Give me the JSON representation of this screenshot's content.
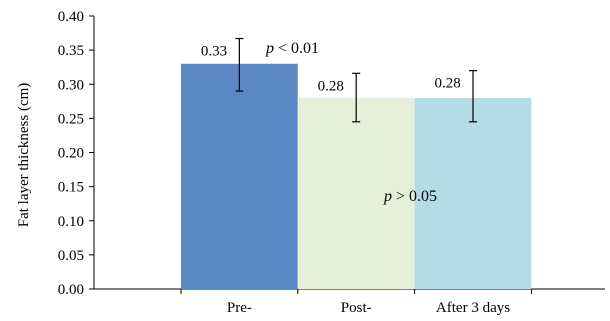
{
  "chart_data": {
    "type": "bar",
    "title": "",
    "xlabel": "",
    "ylabel": "Fat layer thickness (cm)",
    "ylim": [
      0,
      0.4
    ],
    "yticks": [
      "0.00",
      "0.05",
      "0.10",
      "0.15",
      "0.20",
      "0.25",
      "0.30",
      "0.35",
      "0.40"
    ],
    "categories": [
      "Pre-",
      "Post-",
      "After 3 days"
    ],
    "values": [
      0.33,
      0.28,
      0.28
    ],
    "data_labels": [
      "0.33",
      "0.28",
      "0.28"
    ],
    "error_low": [
      0.29,
      0.245,
      0.245
    ],
    "error_high": [
      0.367,
      0.316,
      0.32
    ],
    "colors": [
      "#5b87c5",
      "#e6efda",
      "#b5dbe5"
    ],
    "grid": false,
    "annotations": [
      {
        "p": "p",
        "rest": " < 0.01"
      },
      {
        "p": "p",
        "rest": " > 0.05"
      }
    ]
  }
}
